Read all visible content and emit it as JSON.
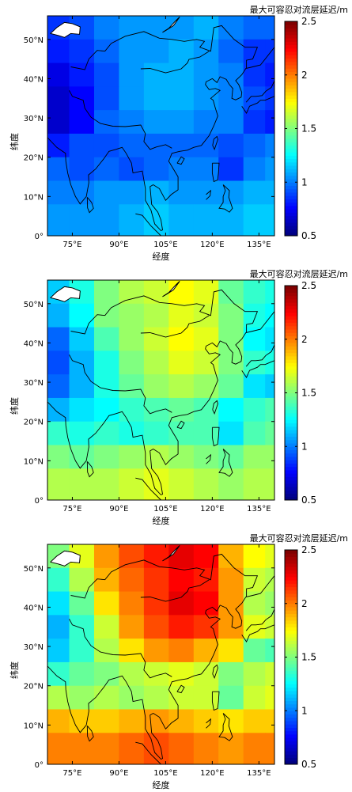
{
  "chart_data": [
    {
      "type": "heatmap",
      "panel": "top",
      "colorbar_title": "最大可容忍对流层延迟/m",
      "colorbar_range": [
        0.5,
        2.5
      ],
      "colorbar_ticks": [
        "0.5",
        "1",
        "1.5",
        "2",
        "2.5"
      ],
      "xlabel": "经度",
      "ylabel": "纬度",
      "x_ticks": [
        "75°E",
        "90°E",
        "105°E",
        "120°E",
        "135°E"
      ],
      "y_ticks": [
        "0°",
        "10°N",
        "20°N",
        "30°N",
        "40°N",
        "50°N"
      ],
      "xlim": [
        67,
        140
      ],
      "ylim": [
        0,
        56
      ],
      "lat": [
        53,
        47,
        41,
        35,
        29,
        23,
        17,
        11,
        5
      ],
      "lon": [
        70,
        78,
        86,
        94,
        102,
        110,
        118,
        126,
        134,
        140
      ],
      "values": [
        [
          0.85,
          0.9,
          1.0,
          1.05,
          1.05,
          1.05,
          1.1,
          1.0,
          0.95,
          0.95
        ],
        [
          0.8,
          0.85,
          0.95,
          1.05,
          1.05,
          1.1,
          1.05,
          0.95,
          0.85,
          0.85
        ],
        [
          0.7,
          0.8,
          0.9,
          1.05,
          1.1,
          1.1,
          1.05,
          1.0,
          0.85,
          0.8
        ],
        [
          0.65,
          0.75,
          0.9,
          1.05,
          1.1,
          1.1,
          1.05,
          1.0,
          0.9,
          0.85
        ],
        [
          0.65,
          0.75,
          0.95,
          1.0,
          1.05,
          1.05,
          1.0,
          1.0,
          0.85,
          0.8
        ],
        [
          0.8,
          0.9,
          0.9,
          0.95,
          0.95,
          0.95,
          0.95,
          0.9,
          0.95,
          1.0
        ],
        [
          0.95,
          0.9,
          0.95,
          0.9,
          0.95,
          1.0,
          1.0,
          0.85,
          1.0,
          1.05
        ],
        [
          1.0,
          1.0,
          1.05,
          1.05,
          1.1,
          1.05,
          1.05,
          1.05,
          1.1,
          1.1
        ],
        [
          1.05,
          1.05,
          1.05,
          1.1,
          1.15,
          1.1,
          1.1,
          1.1,
          1.15,
          1.15
        ]
      ]
    },
    {
      "type": "heatmap",
      "panel": "middle",
      "colorbar_title": "最大可容忍对流层延迟/m",
      "colorbar_range": [
        0.5,
        2.5
      ],
      "colorbar_ticks": [
        "0.5",
        "1",
        "1.5",
        "2",
        "2.5"
      ],
      "xlabel": "经度",
      "ylabel": "纬度",
      "x_ticks": [
        "75°E",
        "90°E",
        "105°E",
        "120°E",
        "135°E"
      ],
      "y_ticks": [
        "0°",
        "10°N",
        "20°N",
        "30°N",
        "40°N",
        "50°N"
      ],
      "xlim": [
        67,
        140
      ],
      "ylim": [
        0,
        56
      ],
      "lat": [
        53,
        47,
        41,
        35,
        29,
        23,
        17,
        11,
        5
      ],
      "lon": [
        70,
        78,
        86,
        94,
        102,
        110,
        118,
        126,
        134,
        140
      ],
      "values": [
        [
          1.15,
          1.3,
          1.5,
          1.6,
          1.65,
          1.75,
          1.7,
          1.45,
          1.35,
          1.3
        ],
        [
          1.1,
          1.25,
          1.5,
          1.55,
          1.6,
          1.7,
          1.65,
          1.5,
          1.3,
          1.25
        ],
        [
          0.95,
          1.15,
          1.4,
          1.55,
          1.65,
          1.75,
          1.7,
          1.5,
          1.25,
          1.2
        ],
        [
          0.9,
          1.1,
          1.3,
          1.5,
          1.6,
          1.7,
          1.65,
          1.5,
          1.35,
          1.3
        ],
        [
          0.95,
          1.1,
          1.3,
          1.45,
          1.55,
          1.6,
          1.55,
          1.45,
          1.2,
          1.15
        ],
        [
          1.1,
          1.2,
          1.25,
          1.35,
          1.4,
          1.45,
          1.4,
          1.25,
          1.35,
          1.4
        ],
        [
          1.35,
          1.3,
          1.35,
          1.3,
          1.35,
          1.4,
          1.4,
          1.2,
          1.4,
          1.45
        ],
        [
          1.5,
          1.45,
          1.5,
          1.55,
          1.6,
          1.55,
          1.5,
          1.45,
          1.55,
          1.55
        ],
        [
          1.6,
          1.6,
          1.6,
          1.65,
          1.7,
          1.65,
          1.6,
          1.55,
          1.6,
          1.6
        ]
      ]
    },
    {
      "type": "heatmap",
      "panel": "bottom",
      "colorbar_title": "最大可容忍对流层延迟/m",
      "colorbar_range": [
        0.5,
        2.5
      ],
      "colorbar_ticks": [
        "0.5",
        "1",
        "1.5",
        "2",
        "2.5"
      ],
      "xlabel": "经度",
      "ylabel": "纬度",
      "x_ticks": [
        "75°E",
        "90°E",
        "105°E",
        "120°E",
        "135°E"
      ],
      "y_ticks": [
        "0°",
        "10°N",
        "20°N",
        "30°N",
        "40°N",
        "50°N"
      ],
      "xlim": [
        67,
        140
      ],
      "ylim": [
        0,
        56
      ],
      "lat": [
        53,
        47,
        41,
        35,
        29,
        23,
        17,
        11,
        5
      ],
      "lon": [
        70,
        78,
        86,
        94,
        102,
        110,
        118,
        126,
        134,
        140
      ],
      "values": [
        [
          1.5,
          1.7,
          1.95,
          2.1,
          2.2,
          2.3,
          2.25,
          1.9,
          1.75,
          1.7
        ],
        [
          1.35,
          1.6,
          1.9,
          2.05,
          2.15,
          2.25,
          2.2,
          1.95,
          1.65,
          1.6
        ],
        [
          1.2,
          1.45,
          1.8,
          2.0,
          2.15,
          2.3,
          2.25,
          1.95,
          1.6,
          1.55
        ],
        [
          1.1,
          1.35,
          1.65,
          1.95,
          2.1,
          2.2,
          2.15,
          1.95,
          1.7,
          1.65
        ],
        [
          1.15,
          1.35,
          1.6,
          1.8,
          1.95,
          2.0,
          1.9,
          1.8,
          1.45,
          1.4
        ],
        [
          1.35,
          1.45,
          1.5,
          1.6,
          1.65,
          1.7,
          1.65,
          1.5,
          1.6,
          1.65
        ],
        [
          1.6,
          1.55,
          1.6,
          1.55,
          1.6,
          1.65,
          1.65,
          1.45,
          1.65,
          1.7
        ],
        [
          1.9,
          1.85,
          1.85,
          1.9,
          1.95,
          1.9,
          1.85,
          1.8,
          1.85,
          1.85
        ],
        [
          2.0,
          2.0,
          2.0,
          2.05,
          2.1,
          2.05,
          2.0,
          1.95,
          2.0,
          2.0
        ]
      ]
    }
  ]
}
